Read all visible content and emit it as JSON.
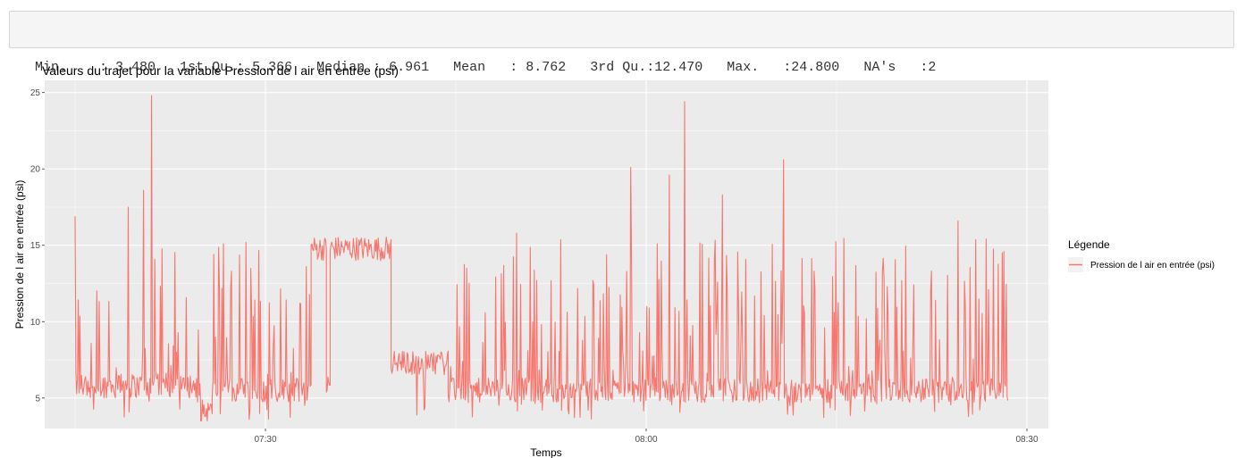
{
  "summary": {
    "items": [
      {
        "label": "Min.   ",
        "value": ": 3.480"
      },
      {
        "label": "1st Qu.",
        "value": ": 5.366"
      },
      {
        "label": "Median ",
        "value": ": 6.961"
      },
      {
        "label": "Mean   ",
        "value": ": 8.762"
      },
      {
        "label": "3rd Qu.",
        "value": ":12.470"
      },
      {
        "label": "Max.   ",
        "value": ":24.800"
      },
      {
        "label": "NA's   ",
        "value": ":2"
      }
    ]
  },
  "chart_data": {
    "type": "line",
    "title": "Valeurs du trajet pour la variable  Pression de l air en entrée (psi)",
    "xlabel": "Temps",
    "ylabel": "Pression de l air en entrée (psi)",
    "x_range_minutes": [
      7.55,
      8.55
    ],
    "ylim": [
      3.0,
      25.8
    ],
    "y_ticks": [
      5,
      10,
      15,
      20,
      25
    ],
    "x_ticks": [
      {
        "value": 7.5,
        "label": "07:30"
      },
      {
        "value": 8.0,
        "label": "08:00"
      },
      {
        "value": 8.5,
        "label": "08:30"
      }
    ],
    "grid": true,
    "legend": {
      "title": "Légende",
      "position": "right",
      "entries": [
        "Pression de l air en entrée (psi)"
      ]
    },
    "series_color": "#F8766D",
    "panel_color": "#EBEBEB",
    "series": [
      {
        "name": "Pression de l air en entrée (psi)",
        "segments": [
          {
            "t_start": 7.25,
            "t_end": 7.415,
            "base": 5.8,
            "spike_max": 17.0,
            "density": 0.55
          },
          {
            "t_start": 7.415,
            "t_end": 7.43,
            "base": 4.1,
            "spike_max": 6.0,
            "density": 0.2
          },
          {
            "t_start": 7.43,
            "t_end": 7.56,
            "base": 5.5,
            "spike_max": 24.8,
            "density": 0.75
          },
          {
            "t_start": 7.56,
            "t_end": 7.58,
            "base": 14.8,
            "spike_max": 14.8,
            "density": 0.0
          },
          {
            "t_start": 7.58,
            "t_end": 7.585,
            "base": 5.8,
            "spike_max": 6.5,
            "density": 0.0
          },
          {
            "t_start": 7.585,
            "t_end": 7.665,
            "base": 14.8,
            "spike_max": 14.8,
            "density": 0.0
          },
          {
            "t_start": 7.665,
            "t_end": 7.74,
            "base": 7.3,
            "spike_max": 8.0,
            "density": 0.1
          },
          {
            "t_start": 7.74,
            "t_end": 8.475,
            "base": 5.5,
            "spike_max": 24.4,
            "density": 0.7
          }
        ],
        "peaks": [
          {
            "t": 7.35,
            "y": 24.8
          },
          {
            "t": 7.34,
            "y": 18.6
          },
          {
            "t": 7.32,
            "y": 17.5
          },
          {
            "t": 7.22,
            "y": 16.9
          },
          {
            "t": 7.98,
            "y": 20.1
          },
          {
            "t": 8.05,
            "y": 24.4
          },
          {
            "t": 8.03,
            "y": 19.6
          },
          {
            "t": 8.18,
            "y": 20.6
          },
          {
            "t": 8.1,
            "y": 18.3
          },
          {
            "t": 8.41,
            "y": 16.6
          },
          {
            "t": 7.83,
            "y": 15.8
          }
        ]
      }
    ]
  }
}
